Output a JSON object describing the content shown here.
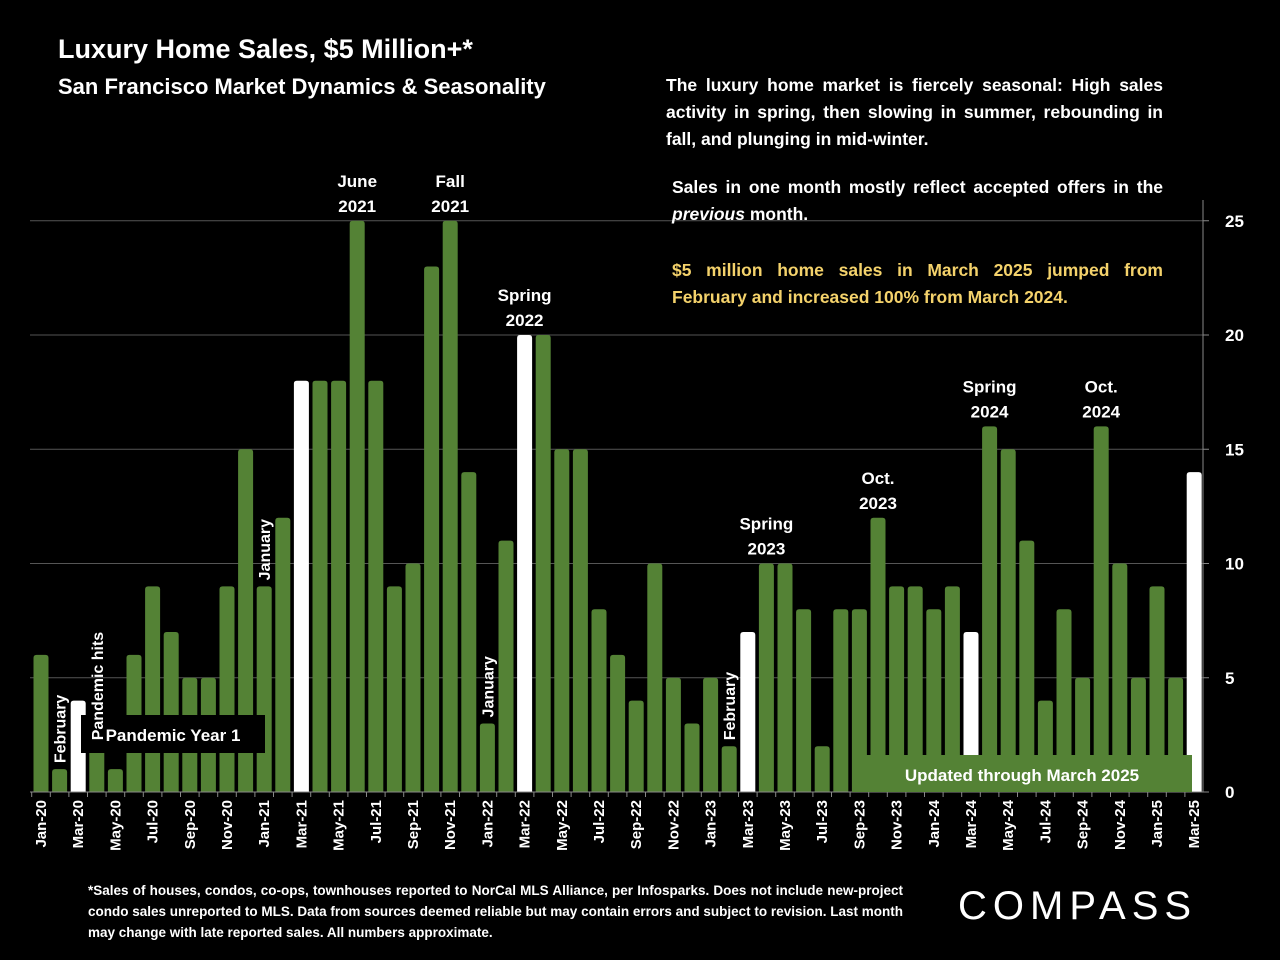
{
  "header": {
    "title": "Luxury Home Sales, $5 Million+*",
    "subtitle": "San Francisco Market Dynamics & Seasonality"
  },
  "notes": {
    "note1": "The luxury home market is fiercely seasonal:  High sales activity in spring, then slowing in summer, rebounding in fall, and plunging in mid-winter.",
    "note2_pre": "Sales in one month mostly reflect accepted offers in the ",
    "note2_em": "previous",
    "note2_post": " month.",
    "note3": "$5 million home sales in March 2025 jumped from February and increased 100% from March 2024."
  },
  "footnote": "*Sales of houses, condos, co-ops, townhouses reported to NorCal MLS Alliance, per Infosparks. Does not include new-project condo sales unreported to MLS. Data from sources deemed reliable but may contain errors and subject to revision. Last month may change with late reported sales. All numbers approximate.",
  "logo": "COMPASS",
  "colors": {
    "bar": "#548235",
    "highlight": "#ffffff",
    "background": "#000000",
    "note_accent": "#f4d26b",
    "grid": "#555555"
  },
  "chart_data": {
    "type": "bar",
    "title": "Luxury Home Sales, $5 Million+*",
    "xlabel": "",
    "ylabel": "",
    "ylim": [
      0,
      26
    ],
    "yticks": [
      0,
      5,
      10,
      15,
      20,
      25
    ],
    "y_axis_side": "right",
    "grid": true,
    "categories": [
      "Jan-20",
      "Feb-20",
      "Mar-20",
      "Apr-20",
      "May-20",
      "Jun-20",
      "Jul-20",
      "Aug-20",
      "Sep-20",
      "Oct-20",
      "Nov-20",
      "Dec-20",
      "Jan-21",
      "Feb-21",
      "Mar-21",
      "Apr-21",
      "May-21",
      "Jun-21",
      "Jul-21",
      "Aug-21",
      "Sep-21",
      "Oct-21",
      "Nov-21",
      "Dec-21",
      "Jan-22",
      "Feb-22",
      "Mar-22",
      "Apr-22",
      "May-22",
      "Jun-22",
      "Jul-22",
      "Aug-22",
      "Sep-22",
      "Oct-22",
      "Nov-22",
      "Dec-22",
      "Jan-23",
      "Feb-23",
      "Mar-23",
      "Apr-23",
      "May-23",
      "Jun-23",
      "Jul-23",
      "Aug-23",
      "Sep-23",
      "Oct-23",
      "Nov-23",
      "Dec-23",
      "Jan-24",
      "Feb-24",
      "Mar-24",
      "Apr-24",
      "May-24",
      "Jun-24",
      "Jul-24",
      "Aug-24",
      "Sep-24",
      "Oct-24",
      "Nov-24",
      "Dec-24",
      "Jan-25",
      "Feb-25",
      "Mar-25"
    ],
    "values": [
      6,
      1,
      4,
      2,
      1,
      6,
      9,
      7,
      5,
      5,
      9,
      15,
      9,
      12,
      18,
      18,
      18,
      25,
      18,
      9,
      10,
      23,
      25,
      14,
      3,
      11,
      20,
      20,
      15,
      15,
      8,
      6,
      4,
      10,
      5,
      3,
      5,
      2,
      7,
      10,
      10,
      8,
      2,
      8,
      8,
      12,
      9,
      9,
      8,
      9,
      7,
      16,
      15,
      11,
      4,
      8,
      5,
      16,
      10,
      5,
      9,
      5,
      14
    ],
    "highlighted": [
      "Mar-20",
      "Mar-21",
      "Mar-22",
      "Mar-23",
      "Mar-24",
      "Mar-25"
    ],
    "tick_labels_every": 2,
    "annotations": [
      {
        "text": "February",
        "at": "Feb-20",
        "rotated": true
      },
      {
        "text": "Pandemic hits",
        "at": "Apr-20",
        "rotated": true
      },
      {
        "text": "January",
        "at": "Jan-21",
        "rotated": true
      },
      {
        "text": "June\n2021",
        "at": "Jun-21"
      },
      {
        "text": "Fall\n2021",
        "at": "Nov-21"
      },
      {
        "text": "January",
        "at": "Jan-22",
        "rotated": true
      },
      {
        "text": "Spring\n2022",
        "at": "Mar-22"
      },
      {
        "text": "February",
        "at": "Feb-23",
        "rotated": true
      },
      {
        "text": "Spring\n2023",
        "at": "Apr-23"
      },
      {
        "text": "Oct.\n2023",
        "at": "Oct-23"
      },
      {
        "text": "Spring\n2024",
        "at": "Apr-24"
      },
      {
        "text": "Oct.\n2024",
        "at": "Oct-24"
      }
    ],
    "boxes": [
      {
        "text": "Pandemic Year 1",
        "style": "black"
      },
      {
        "text": "Updated through March 2025",
        "style": "green"
      }
    ]
  }
}
